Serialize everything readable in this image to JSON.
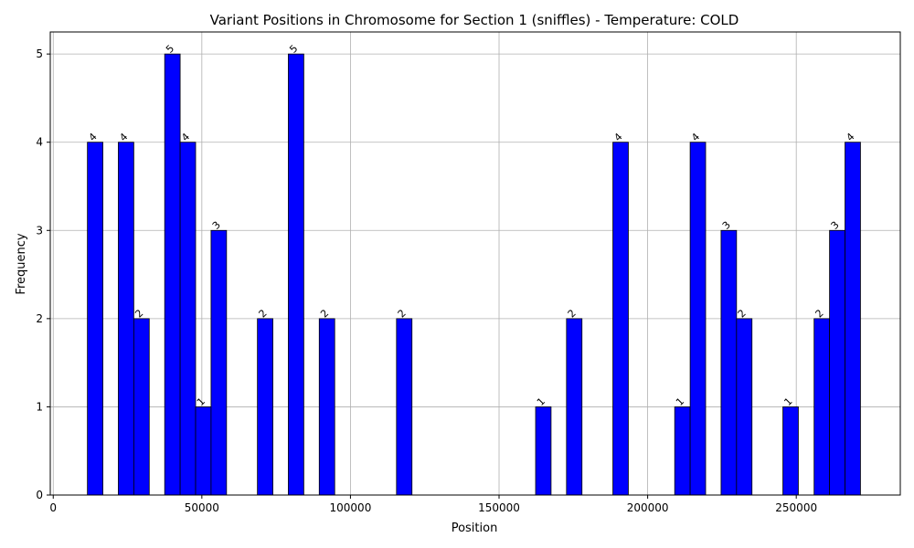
{
  "chart_data": {
    "type": "bar",
    "title": "Variant Positions in Chromosome for Section 1 (sniffles) - Temperature: COLD",
    "xlabel": "Position",
    "ylabel": "Frequency",
    "xlim": [
      -1000,
      285000
    ],
    "ylim": [
      0,
      5.25
    ],
    "xticks": [
      0,
      50000,
      100000,
      150000,
      200000,
      250000
    ],
    "yticks": [
      0,
      1,
      2,
      3,
      4,
      5
    ],
    "grid": true,
    "bar_color": "#0000ff",
    "edge_color": "#000000",
    "bin_width": 5200,
    "bins": [
      {
        "start": 11500,
        "value": 4
      },
      {
        "start": 21900,
        "value": 4
      },
      {
        "start": 27100,
        "value": 2
      },
      {
        "start": 37500,
        "value": 5
      },
      {
        "start": 42700,
        "value": 4
      },
      {
        "start": 47900,
        "value": 1
      },
      {
        "start": 53100,
        "value": 3
      },
      {
        "start": 68700,
        "value": 2
      },
      {
        "start": 79100,
        "value": 5
      },
      {
        "start": 89500,
        "value": 2
      },
      {
        "start": 115500,
        "value": 2
      },
      {
        "start": 162300,
        "value": 1
      },
      {
        "start": 172700,
        "value": 2
      },
      {
        "start": 188300,
        "value": 4
      },
      {
        "start": 209100,
        "value": 1
      },
      {
        "start": 214300,
        "value": 4
      },
      {
        "start": 224700,
        "value": 3
      },
      {
        "start": 229900,
        "value": 2
      },
      {
        "start": 245500,
        "value": 1
      },
      {
        "start": 256000,
        "value": 2
      },
      {
        "start": 261200,
        "value": 3
      },
      {
        "start": 266400,
        "value": 4
      }
    ]
  }
}
